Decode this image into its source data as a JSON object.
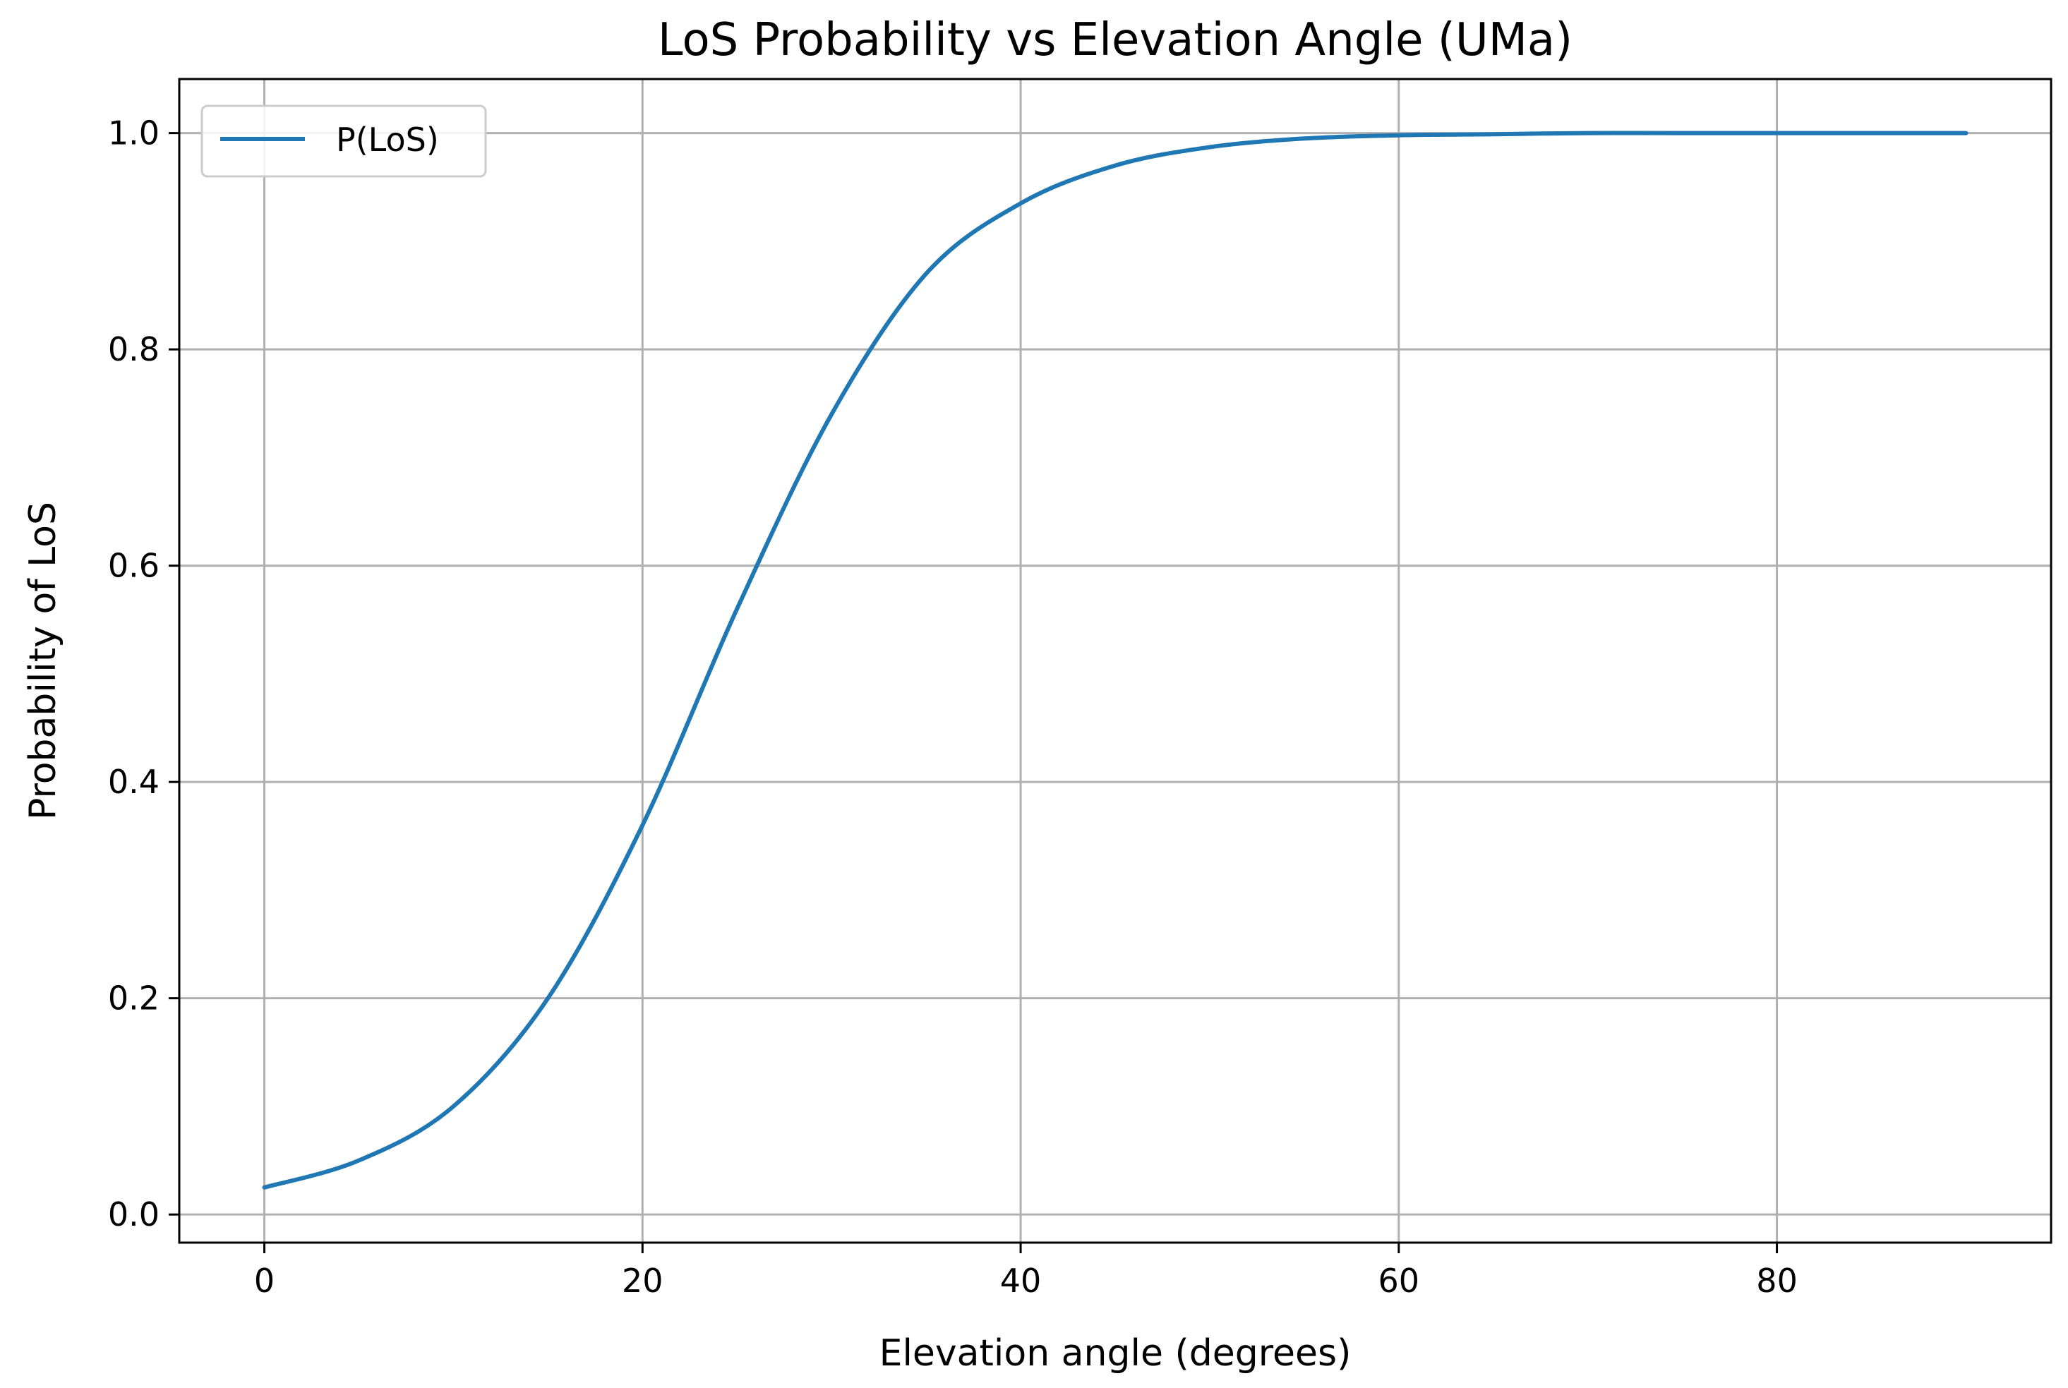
{
  "chart_data": {
    "type": "line",
    "title": "LoS Probability vs Elevation Angle (UMa)",
    "xlabel": "Elevation angle (degrees)",
    "ylabel": "Probability of LoS",
    "xlim": [
      -4.5,
      94.5
    ],
    "ylim": [
      -0.026,
      1.05
    ],
    "xticks": [
      0,
      20,
      40,
      60,
      80
    ],
    "yticks": [
      0.0,
      0.2,
      0.4,
      0.6,
      0.8,
      1.0
    ],
    "xtick_labels": [
      "0",
      "20",
      "40",
      "60",
      "80"
    ],
    "ytick_labels": [
      "0.0",
      "0.2",
      "0.4",
      "0.6",
      "0.8",
      "1.0"
    ],
    "grid": true,
    "legend_position": "upper-left",
    "series": [
      {
        "name": "P(LoS)",
        "color": "#1f77b4",
        "x": [
          0,
          5,
          10,
          15,
          20,
          25,
          30,
          35,
          40,
          45,
          50,
          55,
          60,
          65,
          70,
          75,
          80,
          85,
          90
        ],
        "y": [
          0.025,
          0.05,
          0.1,
          0.2,
          0.36,
          0.56,
          0.74,
          0.87,
          0.935,
          0.97,
          0.987,
          0.995,
          0.998,
          0.999,
          1.0,
          1.0,
          1.0,
          1.0,
          1.0
        ]
      }
    ]
  }
}
